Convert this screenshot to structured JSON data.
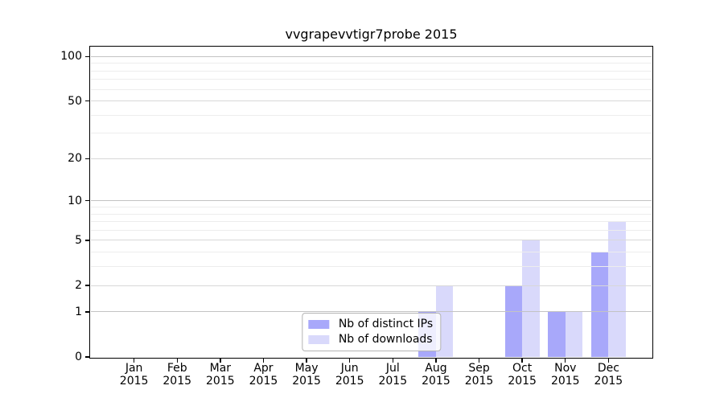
{
  "chart_data": {
    "type": "bar",
    "title": "vvgrapevvtigr7probe 2015",
    "categories": [
      "Jan",
      "Feb",
      "Mar",
      "Apr",
      "May",
      "Jun",
      "Jul",
      "Aug",
      "Sep",
      "Oct",
      "Nov",
      "Dec"
    ],
    "year": "2015",
    "series": [
      {
        "name": "Nb of distinct IPs",
        "color": "#a8a8fa",
        "values": [
          0,
          0,
          0,
          0,
          0,
          0,
          0,
          1,
          0,
          2,
          1,
          4
        ]
      },
      {
        "name": "Nb of downloads",
        "color": "#d9d9fb",
        "values": [
          0,
          0,
          0,
          0,
          0,
          0,
          0,
          2,
          0,
          5,
          1,
          7
        ]
      }
    ],
    "xlabel": "",
    "ylabel": "",
    "yscale": "log1p",
    "ylim": [
      0,
      115
    ],
    "yticks": [
      0,
      1,
      2,
      5,
      10,
      20,
      50,
      100
    ],
    "ygrid": {
      "major": [
        1,
        10,
        100
      ],
      "labeled": [
        2,
        5,
        20,
        50
      ],
      "minor": [
        3,
        4,
        6,
        7,
        8,
        9,
        30,
        40,
        60,
        70,
        80,
        90
      ]
    },
    "grid": true,
    "legend_position": "lower center",
    "colors": {
      "axis": "#000000",
      "grid_major": "#c3c3c3",
      "grid_minor": "#ededed",
      "background": "#ffffff"
    }
  }
}
